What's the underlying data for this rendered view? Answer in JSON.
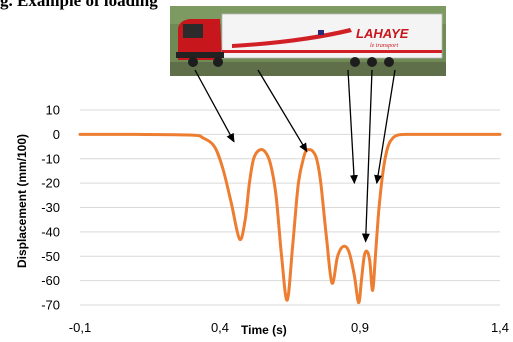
{
  "header_text": "g. Example of loading",
  "truck_photo": {
    "brand_text": "LAHAYE",
    "script_text": "le transport",
    "colors": {
      "cab": "#c8161d",
      "trailer": "#f4f4f4",
      "stripe": "#d11f26",
      "background": "#6f8a55"
    }
  },
  "chart_data": {
    "type": "line",
    "xlabel": "Time (s)",
    "ylabel": "Displacement (mm/100)",
    "xlim": [
      -0.1,
      1.4
    ],
    "ylim": [
      -70,
      10
    ],
    "x_ticks": [
      "-0,1",
      "0,4",
      "0,9",
      "1,4"
    ],
    "y_ticks": [
      "10",
      "0",
      "-10",
      "-20",
      "-30",
      "-40",
      "-50",
      "-60",
      "-70"
    ],
    "grid": true,
    "line_color": "#ed7d31",
    "series": [
      {
        "x": [
          -0.1,
          0.1,
          0.3,
          0.34,
          0.38,
          0.41,
          0.44,
          0.47,
          0.49,
          0.505,
          0.52,
          0.54,
          0.56,
          0.58,
          0.6,
          0.62,
          0.64,
          0.66,
          0.68,
          0.7,
          0.71,
          0.72,
          0.73,
          0.745,
          0.76,
          0.78,
          0.8,
          0.82,
          0.84,
          0.86,
          0.88,
          0.895,
          0.905,
          0.915,
          0.925,
          0.935,
          0.945,
          0.955,
          0.965,
          0.975,
          0.985,
          0.995,
          1.005,
          1.015,
          1.025,
          1.035,
          1.045,
          1.06,
          1.08,
          1.1,
          1.13,
          1.16,
          1.2,
          1.25,
          1.3,
          1.4
        ],
        "y": [
          0,
          0,
          -0.3,
          -1.5,
          -5,
          -14,
          -28,
          -43,
          -35,
          -20,
          -10,
          -6.5,
          -7,
          -12,
          -25,
          -50,
          -68,
          -45,
          -20,
          -9,
          -6.5,
          -6.3,
          -6.8,
          -10,
          -20,
          -42,
          -61,
          -50,
          -46,
          -48,
          -58,
          -69,
          -60,
          -50,
          -48,
          -52,
          -64,
          -50,
          -34,
          -22,
          -13,
          -7,
          -3.5,
          -1.8,
          -0.8,
          -0.3,
          -0.1,
          0,
          0,
          0,
          0,
          0,
          0,
          0,
          0,
          0
        ]
      }
    ],
    "annotations": [
      {
        "type": "arrow",
        "from_label": "truck axle",
        "to": [
          0.45,
          -3
        ]
      },
      {
        "type": "arrow",
        "from_label": "truck axle",
        "to": [
          0.71,
          -7
        ]
      },
      {
        "type": "arrow",
        "from_label": "trailer axle",
        "to": [
          0.88,
          -20
        ]
      },
      {
        "type": "arrow",
        "from_label": "trailer axle",
        "to": [
          0.92,
          -44
        ]
      },
      {
        "type": "arrow",
        "from_label": "trailer axle",
        "to": [
          0.96,
          -20
        ]
      }
    ]
  }
}
